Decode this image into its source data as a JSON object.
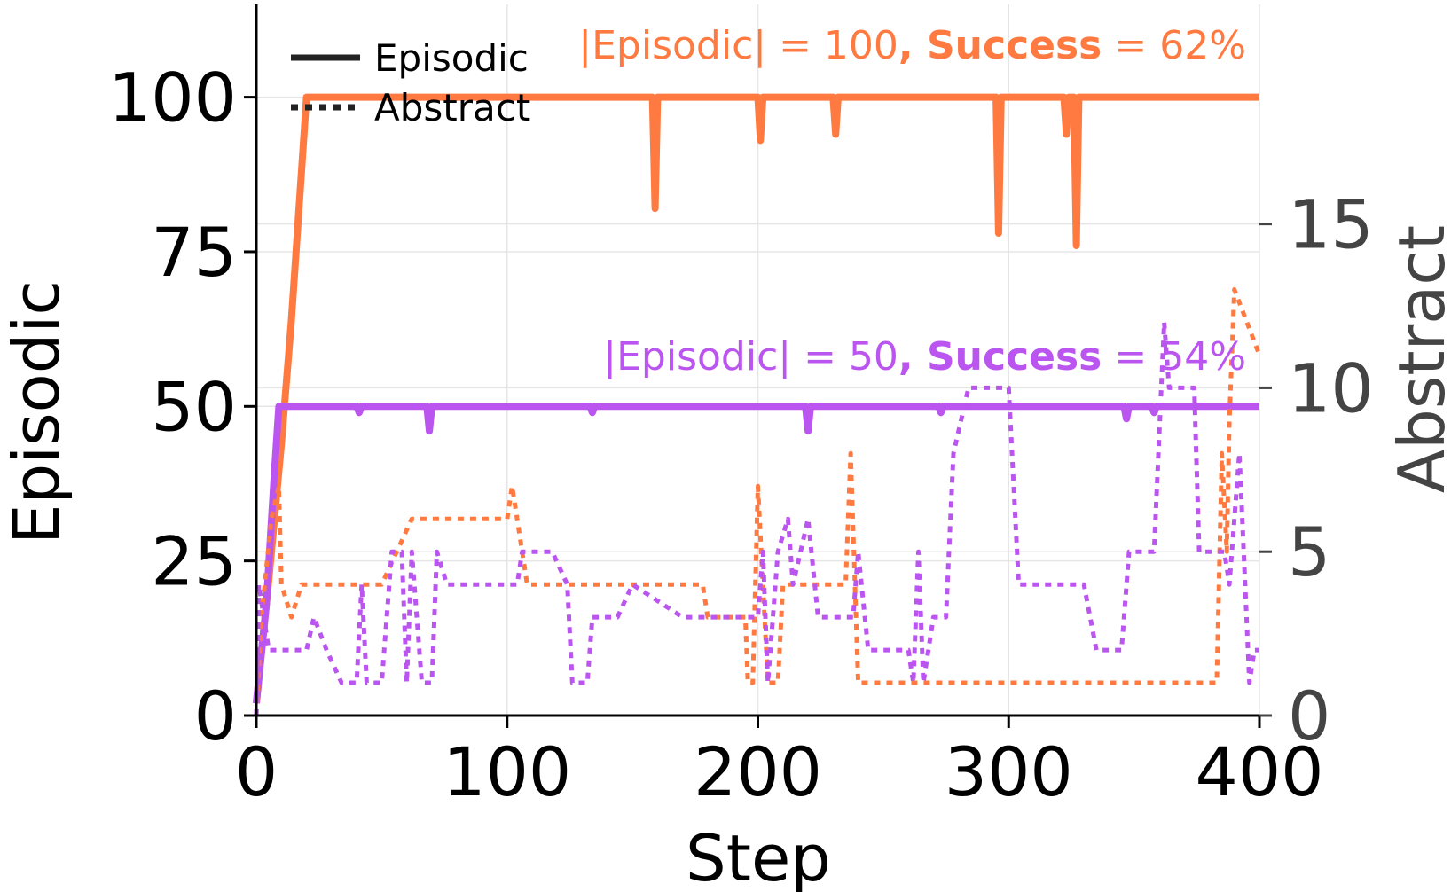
{
  "chart_data": {
    "type": "line",
    "xlabel": "Step",
    "ylabel_left": "Episodic",
    "ylabel_right": "Abstract",
    "xlim": [
      0,
      400
    ],
    "ylim_left": [
      0,
      115
    ],
    "ylim_right": [
      0,
      21.7
    ],
    "xticks": [
      0,
      100,
      200,
      300,
      400
    ],
    "yticks_left": [
      0,
      25,
      50,
      75,
      100
    ],
    "yticks_right": [
      0,
      5,
      10,
      15
    ],
    "grid": true,
    "legend": {
      "placement": "top-left",
      "entries": [
        {
          "label": "Episodic",
          "style": "solid"
        },
        {
          "label": "Abstract",
          "style": "dotted"
        }
      ]
    },
    "annotations": [
      {
        "prefix": "|Episodic| = 100",
        "bold": ", Success",
        "suffix": " = 62%",
        "color": "#ff7a40"
      },
      {
        "prefix": "|Episodic| = 50",
        "bold": ", Success",
        "suffix": " = 54%",
        "color": "#bb55f0"
      }
    ],
    "series": [
      {
        "color": "#ff7a40",
        "axis": "left",
        "style": "solid",
        "points": [
          [
            0,
            2
          ],
          [
            5,
            22
          ],
          [
            10,
            44
          ],
          [
            14,
            64
          ],
          [
            17,
            82
          ],
          [
            20,
            100
          ],
          [
            158,
            100
          ],
          [
            159,
            82
          ],
          [
            160,
            100
          ],
          [
            200,
            100
          ],
          [
            201,
            93
          ],
          [
            202,
            100
          ],
          [
            230,
            100
          ],
          [
            231,
            94
          ],
          [
            232,
            100
          ],
          [
            295,
            100
          ],
          [
            296,
            78
          ],
          [
            297,
            100
          ],
          [
            322,
            100
          ],
          [
            323,
            94
          ],
          [
            324,
            100
          ],
          [
            326,
            100
          ],
          [
            327,
            76
          ],
          [
            328,
            100
          ],
          [
            400,
            100
          ]
        ]
      },
      {
        "color": "#bb55f0",
        "axis": "left",
        "style": "solid",
        "points": [
          [
            0,
            2
          ],
          [
            4,
            18
          ],
          [
            7,
            38
          ],
          [
            9,
            50
          ],
          [
            40,
            50
          ],
          [
            41,
            49
          ],
          [
            42,
            50
          ],
          [
            68,
            50
          ],
          [
            69,
            46
          ],
          [
            70,
            50
          ],
          [
            133,
            50
          ],
          [
            134,
            49
          ],
          [
            135,
            50
          ],
          [
            219,
            50
          ],
          [
            220,
            46
          ],
          [
            221,
            50
          ],
          [
            272,
            50
          ],
          [
            273,
            49
          ],
          [
            274,
            50
          ],
          [
            346,
            50
          ],
          [
            347,
            48
          ],
          [
            348,
            50
          ],
          [
            357,
            50
          ],
          [
            358,
            49
          ],
          [
            359,
            50
          ],
          [
            400,
            50
          ]
        ]
      },
      {
        "color": "#ff7a40",
        "axis": "right",
        "style": "dotted",
        "points": [
          [
            0,
            0
          ],
          [
            2,
            3
          ],
          [
            6,
            6
          ],
          [
            9,
            7
          ],
          [
            10,
            4
          ],
          [
            14,
            3
          ],
          [
            18,
            4
          ],
          [
            50,
            4
          ],
          [
            62,
            6
          ],
          [
            100,
            6
          ],
          [
            102,
            7
          ],
          [
            108,
            4
          ],
          [
            178,
            4
          ],
          [
            180,
            3
          ],
          [
            195,
            3
          ],
          [
            196,
            1
          ],
          [
            198,
            1
          ],
          [
            200,
            7
          ],
          [
            204,
            1
          ],
          [
            208,
            1
          ],
          [
            210,
            4
          ],
          [
            235,
            4
          ],
          [
            237,
            8
          ],
          [
            240,
            1
          ],
          [
            383,
            1
          ],
          [
            385,
            8
          ],
          [
            387,
            5
          ],
          [
            388,
            9
          ],
          [
            390,
            13
          ],
          [
            395,
            12
          ],
          [
            400,
            11
          ]
        ]
      },
      {
        "color": "#bb55f0",
        "axis": "right",
        "style": "dotted",
        "points": [
          [
            0,
            0
          ],
          [
            1,
            4
          ],
          [
            5,
            2
          ],
          [
            20,
            2
          ],
          [
            23,
            3
          ],
          [
            28,
            2
          ],
          [
            34,
            1
          ],
          [
            40,
            1
          ],
          [
            42,
            4
          ],
          [
            44,
            1
          ],
          [
            50,
            1
          ],
          [
            54,
            5
          ],
          [
            58,
            5
          ],
          [
            60,
            1
          ],
          [
            62,
            5
          ],
          [
            66,
            1
          ],
          [
            70,
            1
          ],
          [
            72,
            5
          ],
          [
            76,
            4
          ],
          [
            104,
            4
          ],
          [
            106,
            5
          ],
          [
            118,
            5
          ],
          [
            124,
            4
          ],
          [
            126,
            1
          ],
          [
            132,
            1
          ],
          [
            134,
            3
          ],
          [
            144,
            3
          ],
          [
            150,
            4
          ],
          [
            170,
            3
          ],
          [
            200,
            3
          ],
          [
            202,
            5
          ],
          [
            204,
            1
          ],
          [
            208,
            5
          ],
          [
            212,
            6
          ],
          [
            214,
            4
          ],
          [
            220,
            6
          ],
          [
            224,
            3
          ],
          [
            238,
            3
          ],
          [
            240,
            5
          ],
          [
            244,
            2
          ],
          [
            260,
            2
          ],
          [
            262,
            1
          ],
          [
            264,
            5
          ],
          [
            266,
            1
          ],
          [
            270,
            3
          ],
          [
            275,
            3
          ],
          [
            278,
            8
          ],
          [
            281,
            9
          ],
          [
            284,
            10
          ],
          [
            300,
            10
          ],
          [
            304,
            4
          ],
          [
            330,
            4
          ],
          [
            335,
            2
          ],
          [
            345,
            2
          ],
          [
            348,
            5
          ],
          [
            358,
            5
          ],
          [
            362,
            12
          ],
          [
            364,
            10
          ],
          [
            374,
            10
          ],
          [
            376,
            5
          ],
          [
            386,
            5
          ],
          [
            388,
            4
          ],
          [
            392,
            8
          ],
          [
            396,
            1
          ],
          [
            398,
            2
          ],
          [
            400,
            2
          ]
        ]
      }
    ]
  }
}
